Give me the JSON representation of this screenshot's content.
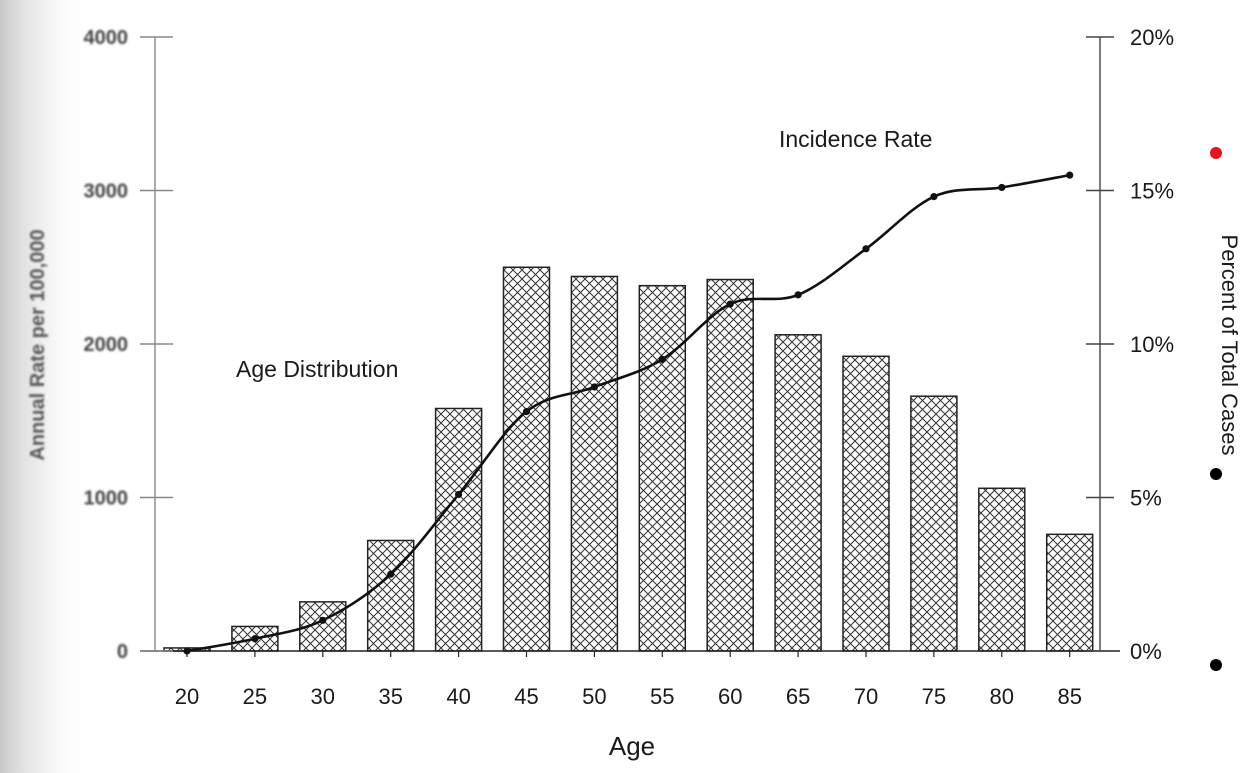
{
  "chart_data": {
    "type": "bar",
    "categories": [
      "20",
      "25",
      "30",
      "35",
      "40",
      "45",
      "50",
      "55",
      "60",
      "65",
      "70",
      "75",
      "80",
      "85"
    ],
    "xlabel": "Age",
    "ylabel_left": "Annual Rate per 100,000",
    "ylabel_right": "Percent of Total Cases",
    "ylim_left": [
      0,
      4000
    ],
    "ylim_right": [
      0,
      20
    ],
    "left_ticks": [
      "0",
      "1000",
      "2000",
      "3000",
      "4000"
    ],
    "right_ticks": [
      "0%",
      "5%",
      "10%",
      "15%",
      "20%"
    ],
    "grid": false,
    "series": [
      {
        "name": "Age Distribution",
        "type": "bar",
        "axis": "right",
        "values": [
          0.1,
          0.8,
          1.6,
          3.6,
          7.9,
          12.5,
          12.2,
          11.9,
          12.1,
          10.3,
          9.6,
          8.3,
          5.3,
          3.8
        ]
      },
      {
        "name": "Incidence Rate",
        "type": "line",
        "axis": "right",
        "values": [
          0.0,
          0.4,
          1.0,
          2.5,
          5.1,
          7.8,
          8.6,
          9.5,
          11.3,
          11.6,
          13.1,
          14.8,
          15.1,
          15.5
        ]
      }
    ]
  },
  "annotations": {
    "age_distribution": "Age Distribution",
    "incidence_rate": "Incidence Rate"
  },
  "colors": {
    "bar_hatch": "#333333",
    "line": "#111111",
    "marker_red": "#e8141b",
    "marker_black": "#000000"
  }
}
